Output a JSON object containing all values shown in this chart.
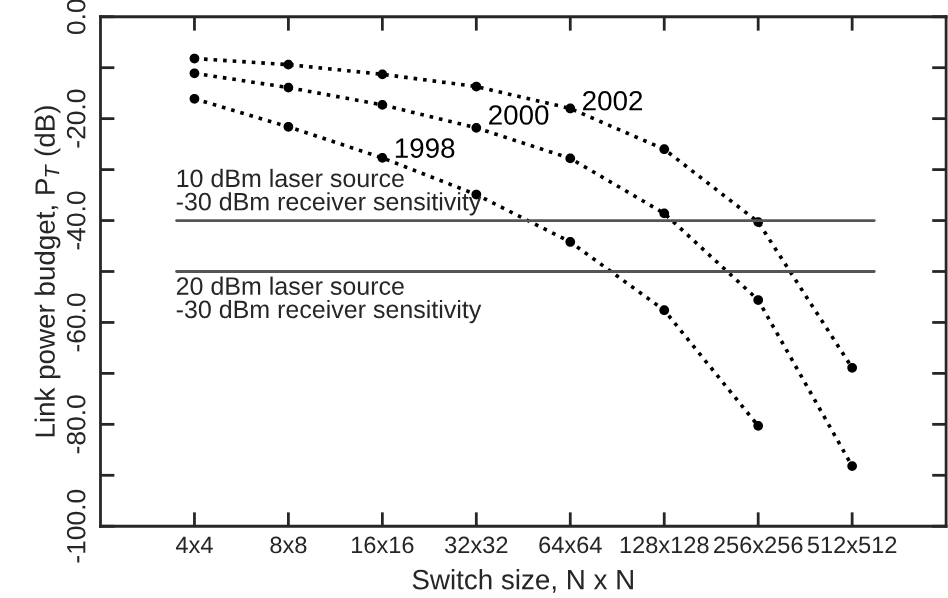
{
  "chart_data": {
    "type": "line",
    "xlabel": "Switch size, N x N",
    "ylabel": "Link power budget, P$_{T}$ (dB)",
    "categories": [
      "4x4",
      "8x8",
      "16x16",
      "32x32",
      "64x64",
      "128x128",
      "256x256",
      "512x512"
    ],
    "series": [
      {
        "name": "1998",
        "color": "#000000",
        "values": [
          -16.1,
          -21.6,
          -27.7,
          -34.9,
          -44.2,
          -57.6,
          -80.3,
          null
        ]
      },
      {
        "name": "2000",
        "color": "#000000",
        "values": [
          -11.1,
          -13.9,
          -17.3,
          -21.8,
          -27.8,
          -38.6,
          -55.6,
          -88.2
        ]
      },
      {
        "name": "2002",
        "color": "#000000",
        "values": [
          -8.2,
          -9.4,
          -11.3,
          -13.7,
          -18.0,
          -26.0,
          -40.3,
          -68.9
        ]
      }
    ],
    "ylim": [
      -100,
      0
    ],
    "yticks": [
      {
        "value": 0,
        "label": "0.0"
      },
      {
        "value": -10,
        "label": null
      },
      {
        "value": -20,
        "label": "-20.0"
      },
      {
        "value": -30,
        "label": null
      },
      {
        "value": -40,
        "label": "-40.0"
      },
      {
        "value": -50,
        "label": null
      },
      {
        "value": -60,
        "label": "-60.0"
      },
      {
        "value": -70,
        "label": null
      },
      {
        "value": -80,
        "label": "-80.0"
      },
      {
        "value": -90,
        "label": null
      },
      {
        "value": -100,
        "label": "-100.0"
      }
    ],
    "ref_lines": [
      {
        "axis": "y",
        "value": -40,
        "label": "10 dBm laser source\n-30 dBm receiver sensitivity",
        "color": "#555555",
        "line_style": "solid"
      },
      {
        "axis": "y",
        "value": -50,
        "label": "20 dBm laser source\n-30 dBm receiver sensitivity",
        "color": "#555555",
        "line_style": "solid"
      }
    ],
    "marker": "circle",
    "line_style": "dotted",
    "grid": false,
    "legend": false
  }
}
